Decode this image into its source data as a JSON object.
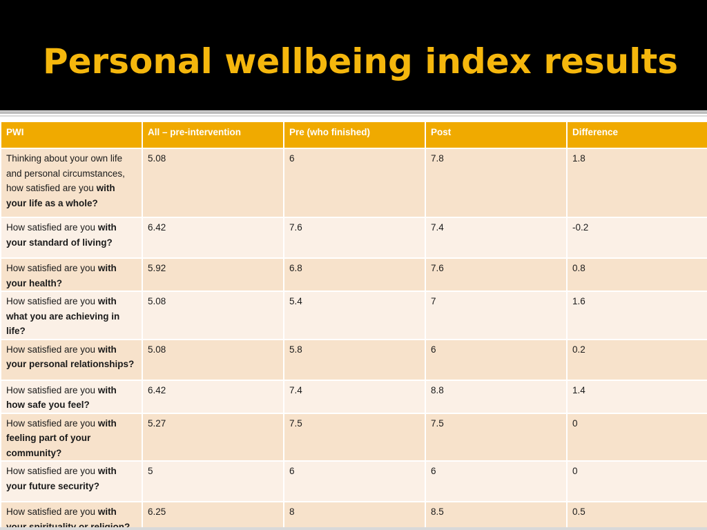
{
  "slide": {
    "title": "Personal wellbeing index results"
  },
  "colors": {
    "title_band": "#000000",
    "title_text": "#f5b70d",
    "header_fill": "#f0aa00",
    "row_odd": "#f7e2cb",
    "row_even": "#fbf0e6"
  },
  "table": {
    "headers": [
      "PWI",
      "All – pre-intervention",
      "Pre (who finished)",
      "Post",
      "Difference"
    ],
    "rows": [
      {
        "q_plain": "Thinking about your own life and personal circumstances, how satisfied are you ",
        "q_bold": "with your life as a whole?",
        "all_pre": "5.08",
        "pre_finished": "6",
        "post": "7.8",
        "difference": "1.8"
      },
      {
        "q_plain": "How satisfied are you ",
        "q_bold": "with your standard of living?",
        "all_pre": "6.42",
        "pre_finished": "7.6",
        "post": "7.4",
        "difference": "-0.2"
      },
      {
        "q_plain": "How satisfied are you ",
        "q_bold": "with your health?",
        "all_pre": "5.92",
        "pre_finished": "6.8",
        "post": "7.6",
        "difference": "0.8"
      },
      {
        "q_plain": "How satisfied are you ",
        "q_bold": "with what you are achieving in life?",
        "all_pre": "5.08",
        "pre_finished": "5.4",
        "post": "7",
        "difference": "1.6"
      },
      {
        "q_plain": "How satisfied are you ",
        "q_bold": "with your personal relationships?",
        "all_pre": "5.08",
        "pre_finished": "5.8",
        "post": "6",
        "difference": "0.2"
      },
      {
        "q_plain": "How satisfied are you ",
        "q_bold": "with how safe you feel?",
        "all_pre": "6.42",
        "pre_finished": "7.4",
        "post": "8.8",
        "difference": "1.4"
      },
      {
        "q_plain": "How satisfied are you ",
        "q_bold": "with feeling part of your community?",
        "all_pre": "5.27",
        "pre_finished": "7.5",
        "post": "7.5",
        "difference": "0"
      },
      {
        "q_plain": "How satisfied are you ",
        "q_bold": "with your future security?",
        "all_pre": "5",
        "pre_finished": "6",
        "post": "6",
        "difference": "0"
      },
      {
        "q_plain": "How satisfied are you ",
        "q_bold": "with your spirituality or religion?",
        "all_pre": "6.25",
        "pre_finished": "8",
        "post": "8.5",
        "difference": "0.5"
      }
    ]
  }
}
